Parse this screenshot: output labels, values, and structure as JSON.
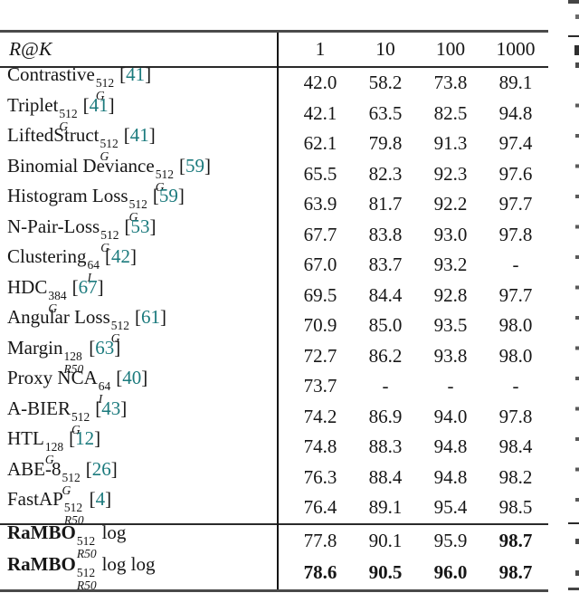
{
  "table": {
    "header": {
      "metric_parts": [
        "R",
        "@",
        "K"
      ],
      "ks": [
        "1",
        "10",
        "100",
        "1000"
      ]
    },
    "citation_brackets": [
      "[",
      "]"
    ],
    "rows": [
      {
        "name": "Contrastive",
        "sup": "512",
        "sub": "G",
        "cite": "41",
        "values": [
          "42.0",
          "58.2",
          "73.8",
          "89.1"
        ]
      },
      {
        "name": "Triplet",
        "sup": "512",
        "sub": "G",
        "cite": "41",
        "values": [
          "42.1",
          "63.5",
          "82.5",
          "94.8"
        ]
      },
      {
        "name": "LiftedStruct",
        "sup": "512",
        "sub": "G",
        "cite": "41",
        "values": [
          "62.1",
          "79.8",
          "91.3",
          "97.4"
        ]
      },
      {
        "name": "Binomial Deviance",
        "sup": "512",
        "sub": "G",
        "cite": "59",
        "values": [
          "65.5",
          "82.3",
          "92.3",
          "97.6"
        ]
      },
      {
        "name": "Histogram Loss",
        "sup": "512",
        "sub": "G",
        "cite": "59",
        "values": [
          "63.9",
          "81.7",
          "92.2",
          "97.7"
        ]
      },
      {
        "name": "N-Pair-Loss",
        "sup": "512",
        "sub": "G",
        "cite": "53",
        "values": [
          "67.7",
          "83.8",
          "93.0",
          "97.8"
        ]
      },
      {
        "name": "Clustering",
        "sup": "64",
        "sub": "I",
        "cite": "42",
        "values": [
          "67.0",
          "83.7",
          "93.2",
          "-"
        ]
      },
      {
        "name": "HDC",
        "sup": "384",
        "sub": "G",
        "cite": "67",
        "values": [
          "69.5",
          "84.4",
          "92.8",
          "97.7"
        ]
      },
      {
        "name": "Angular Loss",
        "sup": "512",
        "sub": "G",
        "cite": "61",
        "values": [
          "70.9",
          "85.0",
          "93.5",
          "98.0"
        ]
      },
      {
        "name": "Margin",
        "sup": "128",
        "sub": "R50",
        "cite": "63",
        "values": [
          "72.7",
          "86.2",
          "93.8",
          "98.0"
        ]
      },
      {
        "name": "Proxy NCA",
        "sup": "64",
        "sub": "I",
        "cite": "40",
        "values": [
          "73.7",
          "-",
          "-",
          "-"
        ]
      },
      {
        "name": "A-BIER",
        "sup": "512",
        "sub": "G",
        "cite": "43",
        "values": [
          "74.2",
          "86.9",
          "94.0",
          "97.8"
        ]
      },
      {
        "name": "HTL",
        "sup": "128",
        "sub": "G",
        "cite": "12",
        "values": [
          "74.8",
          "88.3",
          "94.8",
          "98.4"
        ]
      },
      {
        "name": "ABE-8",
        "sup": "512",
        "sub": "G",
        "cite": "26",
        "values": [
          "76.3",
          "88.4",
          "94.8",
          "98.2"
        ]
      },
      {
        "name": "FastAP",
        "sup": "512",
        "sub": "R50",
        "cite": "4",
        "values": [
          "76.4",
          "89.1",
          "95.4",
          "98.5"
        ]
      }
    ],
    "ours_rows": [
      {
        "name": "RaMBO",
        "sup": "512",
        "sub": "R50",
        "suffix": "log",
        "bold_name": true,
        "values": [
          "77.8",
          "90.1",
          "95.9",
          "98.7"
        ],
        "bold": [
          false,
          false,
          false,
          true
        ]
      },
      {
        "name": "RaMBO",
        "sup": "512",
        "sub": "R50",
        "suffix": "log log",
        "bold_name": true,
        "values": [
          "78.6",
          "90.5",
          "96.0",
          "98.7"
        ],
        "bold": [
          true,
          true,
          true,
          true
        ]
      }
    ]
  },
  "colors": {
    "citation": "#1b7a7d",
    "rule_heavy": "#4a4a4a",
    "rule_light": "#2a2a2a",
    "text": "#161616"
  }
}
